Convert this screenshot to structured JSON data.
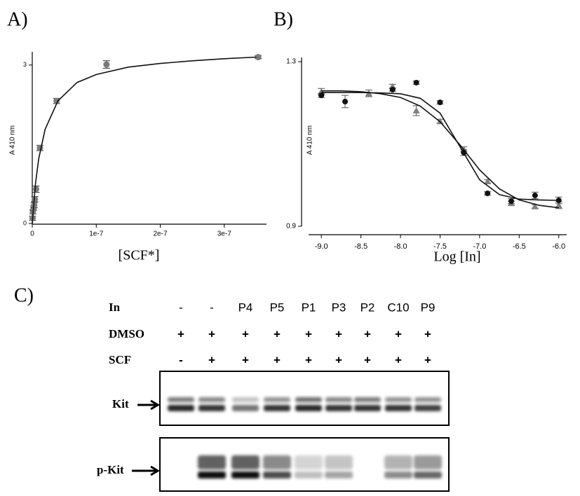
{
  "chart_data": [
    {
      "type": "scatter",
      "panel_label": "A)",
      "x_label": "[SCF*]",
      "y_label": "A 410 nm",
      "xlim": [
        0,
        3.66e-07
      ],
      "ylim": [
        0,
        3.17
      ],
      "xticks": [
        0,
        1e-07,
        2e-07,
        3e-07
      ],
      "yticks": [
        0,
        3
      ],
      "series": [
        {
          "marker": "circle",
          "color": "#7a7a7a",
          "x": [
            5e-10,
            1e-09,
            2e-09,
            3e-09,
            4e-09,
            6e-09,
            1.2e-08,
            3.8e-08,
            1.16e-07,
            3.53e-07
          ],
          "values": [
            0.1,
            0.22,
            0.29,
            0.35,
            0.46,
            0.65,
            1.43,
            2.32,
            3.01,
            3.15
          ],
          "errors": [
            0.04,
            0.04,
            0.04,
            0.05,
            0.05,
            0.06,
            0.05,
            0.05,
            0.07,
            0.03
          ]
        },
        {
          "marker": "line",
          "color": "#111111",
          "x": [
            0,
            5e-09,
            1e-08,
            2e-08,
            4e-08,
            7e-08,
            1e-07,
            1.5e-07,
            2e-07,
            2.5e-07,
            3e-07,
            3.5e-07
          ],
          "values": [
            0,
            0.75,
            1.22,
            1.78,
            2.32,
            2.67,
            2.82,
            2.96,
            3.03,
            3.08,
            3.12,
            3.15
          ]
        }
      ]
    },
    {
      "type": "scatter",
      "panel_label": "B)",
      "x_label": "Log [In]",
      "y_label": "A 410 nm",
      "xlim": [
        -9.25,
        -5.9
      ],
      "ylim": [
        0.9,
        1.3
      ],
      "xticks": [
        {
          "value": -9,
          "label": "-9.0"
        },
        -8.5,
        {
          "value": -8,
          "label": "-8.0"
        },
        -7.5,
        {
          "value": -7,
          "label": "-7.0"
        },
        -6.5,
        {
          "value": -6,
          "label": "-6.0"
        }
      ],
      "yticks": [
        0.9,
        1.3
      ],
      "series": [
        {
          "marker": "triangle",
          "color": "#808080",
          "x": [
            -9.0,
            -8.4,
            -8.1,
            -7.8,
            -7.5,
            -7.2,
            -6.9,
            -6.6,
            -6.3,
            -6.0
          ],
          "values": [
            1.227,
            1.223,
            1.24,
            1.181,
            1.155,
            1.087,
            1.009,
            0.956,
            0.948,
            0.951
          ],
          "errors": [
            0.008,
            0.008,
            0.005,
            0.012,
            0.005,
            0.006,
            0.004,
            0.005,
            0.004,
            0.008
          ]
        },
        {
          "marker": "circle",
          "color": "#111111",
          "x": [
            -9.0,
            -8.7,
            -8.1,
            -7.8,
            -7.5,
            -7.2,
            -6.9,
            -6.6,
            -6.3,
            -6.0
          ],
          "values": [
            1.218,
            1.203,
            1.232,
            1.249,
            1.201,
            1.079,
            0.98,
            0.961,
            0.975,
            0.963
          ],
          "errors": [
            0.005,
            0.015,
            0.004,
            0.004,
            0.004,
            0.007,
            0.004,
            0.006,
            0.008,
            0.008
          ]
        },
        {
          "marker": "line",
          "color": "#111111",
          "x": [
            -9.0,
            -8.75,
            -8.5,
            -8.25,
            -8.0,
            -7.75,
            -7.5,
            -7.25,
            -7.0,
            -6.75,
            -6.5,
            -6.25,
            -6.0
          ],
          "values": [
            1.225,
            1.225,
            1.225,
            1.224,
            1.222,
            1.211,
            1.175,
            1.094,
            1.013,
            0.977,
            0.966,
            0.964,
            0.963
          ]
        },
        {
          "marker": "line",
          "color": "#111111",
          "x": [
            -9.0,
            -8.75,
            -8.5,
            -8.25,
            -8.0,
            -7.75,
            -7.5,
            -7.25,
            -7.0,
            -6.75,
            -6.5,
            -6.25,
            -6.0
          ],
          "values": [
            1.229,
            1.229,
            1.227,
            1.222,
            1.213,
            1.192,
            1.154,
            1.098,
            1.037,
            0.991,
            0.964,
            0.951,
            0.945
          ]
        }
      ]
    }
  ],
  "blot": {
    "panel_label": "C)",
    "rows": [
      {
        "label": "In",
        "lanes": [
          "-",
          "-",
          "P4",
          "P5",
          "P1",
          "P3",
          "P2",
          "C10",
          "P9"
        ]
      },
      {
        "label": "DMSO",
        "lanes": [
          "+",
          "+",
          "+",
          "+",
          "+",
          "+",
          "+",
          "+",
          "+"
        ]
      },
      {
        "label": "SCF",
        "lanes": [
          "-",
          "+",
          "+",
          "+",
          "+",
          "+",
          "+",
          "+",
          "+"
        ]
      }
    ],
    "bands": [
      {
        "label": "Kit"
      },
      {
        "label": "p-Kit"
      }
    ]
  }
}
